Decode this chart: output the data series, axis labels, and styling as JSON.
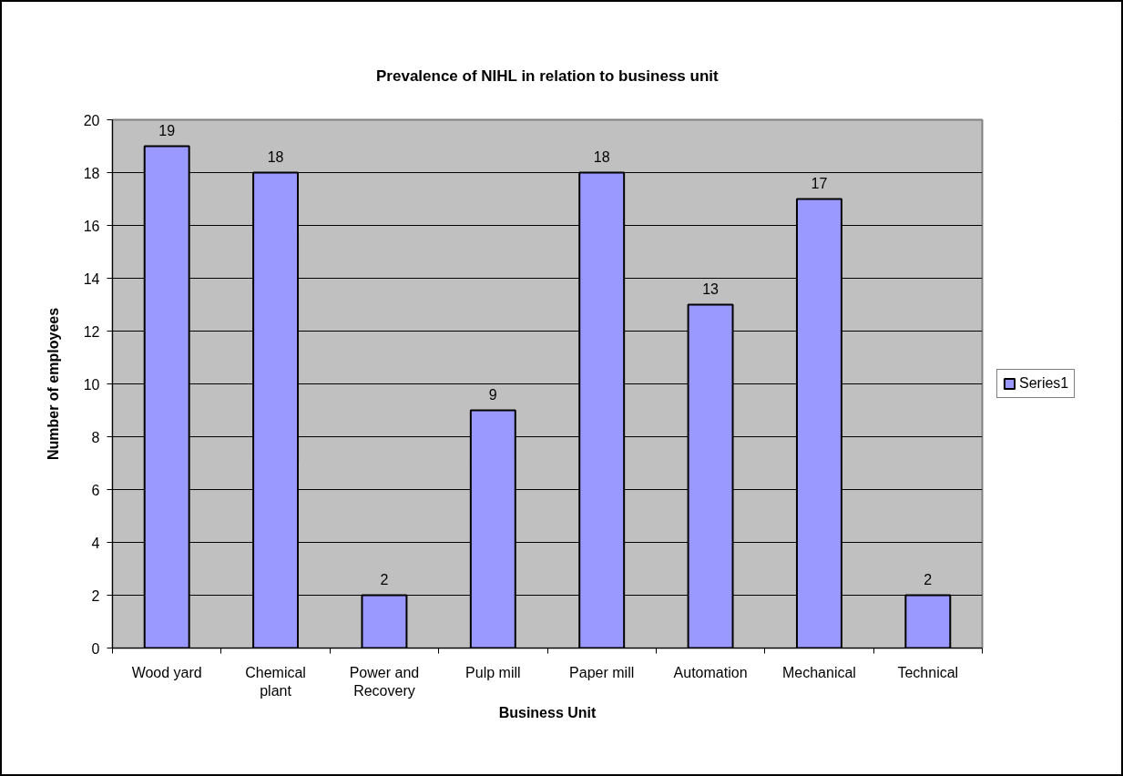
{
  "chart_data": {
    "type": "bar",
    "title": "Prevalence of NIHL in relation to business unit",
    "xlabel": "Business Unit",
    "ylabel": "Number of employees",
    "categories": [
      "Wood yard",
      "Chemical plant",
      "Power and Recovery",
      "Pulp mill",
      "Paper mill",
      "Automation",
      "Mechanical",
      "Technical"
    ],
    "series": [
      {
        "name": "Series1",
        "color": "#9999ff",
        "values": [
          19,
          18,
          2,
          9,
          18,
          13,
          17,
          2
        ]
      }
    ],
    "ylim": [
      0,
      20
    ],
    "yticks": [
      0,
      2,
      4,
      6,
      8,
      10,
      12,
      14,
      16,
      18,
      20
    ],
    "grid": "y",
    "legend": "right",
    "data_labels": true
  }
}
